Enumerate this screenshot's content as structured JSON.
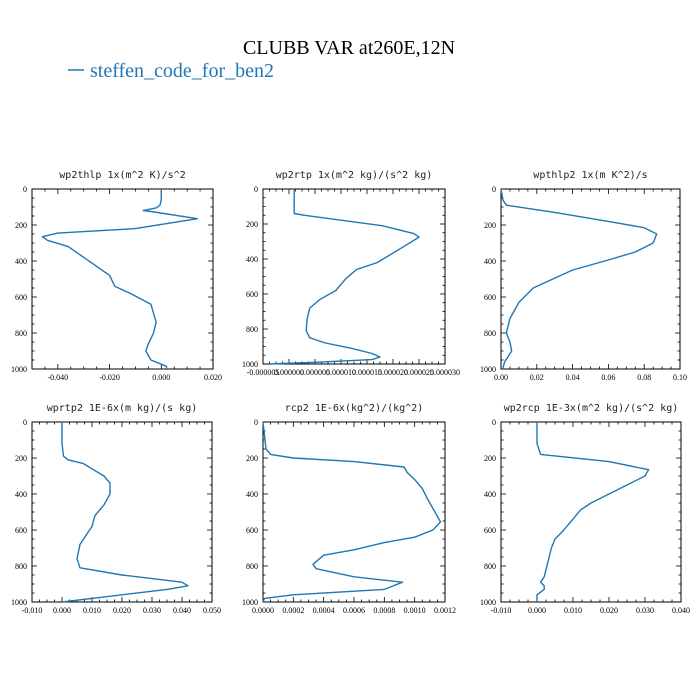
{
  "figure": {
    "title": "CLUBB VAR at260E,12N",
    "legend": [
      {
        "name": "steffen_code_for_ben2",
        "color": "#1f77b4"
      }
    ]
  },
  "chart_data": [
    {
      "type": "line",
      "title": "wp2thlp   1x(m^2 K)/s^2",
      "series_name": "steffen_code_for_ben2",
      "xlim": [
        -0.05,
        0.02
      ],
      "ylim": [
        1000,
        0
      ],
      "xticks": [
        "-0.040",
        "-0.020",
        "0.000",
        "0.020"
      ],
      "yticks": [
        "0",
        "200",
        "400",
        "600",
        "800",
        "1000"
      ],
      "x": [
        0.0,
        0.0,
        -0.0005,
        -0.002,
        -0.007,
        -0.004,
        0.014,
        -0.01,
        -0.04,
        -0.046,
        -0.044,
        -0.036,
        -0.026,
        -0.02,
        -0.018,
        -0.012,
        -0.004,
        -0.002,
        -0.003,
        -0.005,
        -0.006,
        -0.004,
        0.002,
        0.002
      ],
      "y": [
        0,
        60,
        90,
        105,
        120,
        125,
        165,
        220,
        245,
        265,
        285,
        320,
        420,
        480,
        540,
        580,
        640,
        740,
        800,
        860,
        900,
        950,
        985,
        1000
      ]
    },
    {
      "type": "line",
      "title": "wp2rtp   1x(m^2 kg)/(s^2 kg)",
      "series_name": "steffen_code_for_ben2",
      "xlim": [
        -5e-06,
        3e-05
      ],
      "ylim": [
        1000,
        0
      ],
      "xticks": [
        "-0.000005",
        "0.000000",
        "0.000005",
        "0.000010",
        "0.000015",
        "0.000020",
        "0.000025",
        "0.000030"
      ],
      "yticks": [
        "0",
        "200",
        "400",
        "600",
        "800",
        "1000"
      ],
      "x": [
        1e-06,
        1e-06,
        3e-06,
        1.8e-05,
        2.4e-05,
        2.5e-05,
        2.2e-05,
        1.7e-05,
        1.3e-05,
        1.1e-05,
        9e-06,
        6e-06,
        4e-06,
        3.5e-06,
        3.3e-06,
        4e-06,
        7e-06,
        1.2e-05,
        1.6e-05,
        1.75e-05,
        1.6e-05,
        5e-06,
        -4e-06
      ],
      "y": [
        0,
        140,
        150,
        210,
        255,
        275,
        330,
        420,
        460,
        510,
        580,
        630,
        680,
        740,
        810,
        850,
        880,
        910,
        940,
        960,
        975,
        990,
        1000
      ]
    },
    {
      "type": "line",
      "title": "wpthlp2   1x(m K^2)/s",
      "series_name": "steffen_code_for_ben2",
      "xlim": [
        0,
        0.1
      ],
      "ylim": [
        1000,
        0
      ],
      "xticks": [
        "0.00",
        "0.02",
        "0.04",
        "0.06",
        "0.08",
        "0.10"
      ],
      "yticks": [
        "0",
        "200",
        "400",
        "600",
        "800",
        "1000"
      ],
      "x": [
        0.0,
        0.001,
        0.003,
        0.03,
        0.06,
        0.08,
        0.087,
        0.085,
        0.075,
        0.058,
        0.04,
        0.018,
        0.01,
        0.005,
        0.003,
        0.005,
        0.006,
        0.004,
        0.002,
        0.001
      ],
      "y": [
        0,
        60,
        90,
        130,
        180,
        215,
        250,
        300,
        350,
        400,
        450,
        550,
        630,
        720,
        800,
        850,
        900,
        930,
        960,
        1000
      ]
    },
    {
      "type": "line",
      "title": "wprtp2   1E-6x(m kg)/(s kg)",
      "series_name": "steffen_code_for_ben2",
      "xlim": [
        -0.01,
        0.05
      ],
      "ylim": [
        1000,
        0
      ],
      "xticks": [
        "-0.010",
        "0.000",
        "0.010",
        "0.020",
        "0.030",
        "0.040",
        "0.050"
      ],
      "yticks": [
        "0",
        "200",
        "400",
        "600",
        "800",
        "1000"
      ],
      "x": [
        0.0,
        0.0,
        0.0005,
        0.002,
        0.007,
        0.01,
        0.014,
        0.016,
        0.016,
        0.014,
        0.011,
        0.01,
        0.008,
        0.006,
        0.005,
        0.006,
        0.02,
        0.04,
        0.042,
        0.035,
        0.01,
        0.0
      ],
      "y": [
        0,
        120,
        190,
        210,
        230,
        260,
        300,
        340,
        400,
        460,
        520,
        580,
        630,
        680,
        760,
        810,
        850,
        890,
        910,
        930,
        980,
        1000
      ]
    },
    {
      "type": "line",
      "title": "rcp2   1E-6x(kg^2)/(kg^2)",
      "series_name": "steffen_code_for_ben2",
      "xlim": [
        0,
        0.0012
      ],
      "ylim": [
        1000,
        0
      ],
      "xticks": [
        "0.0000",
        "0.0002",
        "0.0004",
        "0.0006",
        "0.0008",
        "0.0010",
        "0.0012"
      ],
      "yticks": [
        "0",
        "200",
        "400",
        "600",
        "800",
        "1000"
      ],
      "x": [
        0.0,
        2e-05,
        5e-05,
        0.0002,
        0.0006,
        0.00093,
        0.00095,
        0.001,
        0.00105,
        0.00108,
        0.00117,
        0.00112,
        0.001,
        0.0008,
        0.0006,
        0.0004,
        0.00033,
        0.00035,
        0.0006,
        0.00092,
        0.0008,
        0.0002,
        1e-05,
        0.0
      ],
      "y": [
        0,
        150,
        180,
        200,
        220,
        250,
        280,
        320,
        370,
        420,
        555,
        600,
        640,
        670,
        710,
        740,
        790,
        815,
        860,
        890,
        930,
        960,
        980,
        1000
      ]
    },
    {
      "type": "line",
      "title": "wp2rcp   1E-3x(m^2 kg)/(s^2 kg)",
      "series_name": "steffen_code_for_ben2",
      "xlim": [
        -0.01,
        0.04
      ],
      "ylim": [
        1000,
        0
      ],
      "xticks": [
        "-0.010",
        "0.000",
        "0.010",
        "0.020",
        "0.030",
        "0.040"
      ],
      "yticks": [
        "0",
        "200",
        "400",
        "600",
        "800",
        "1000"
      ],
      "x": [
        0.0,
        0.0,
        0.001,
        0.02,
        0.031,
        0.03,
        0.025,
        0.02,
        0.015,
        0.012,
        0.01,
        0.007,
        0.005,
        0.004,
        0.003,
        0.002,
        0.001,
        0.002,
        0.002,
        0.0,
        0.0
      ],
      "y": [
        0,
        120,
        180,
        220,
        265,
        300,
        350,
        400,
        450,
        490,
        540,
        610,
        650,
        700,
        780,
        860,
        890,
        910,
        930,
        960,
        1000
      ]
    }
  ]
}
